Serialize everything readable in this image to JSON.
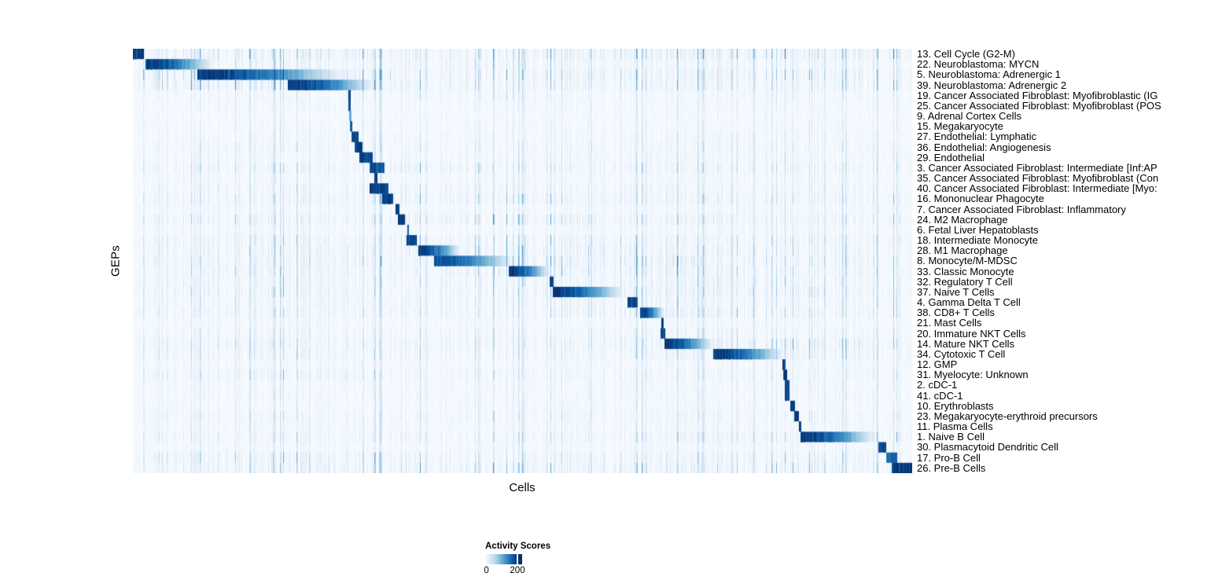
{
  "figure": {
    "background": "#ffffff"
  },
  "legend": {
    "title": "Activity Scores",
    "tick_labels": [
      "0",
      "200"
    ],
    "min": 0,
    "max": 200,
    "tick_value_fraction": 0.87
  },
  "chart_data": {
    "type": "heatmap",
    "title": "",
    "xlabel": "Cells",
    "ylabel": "GEPs",
    "legend_title": "Activity Scores",
    "value_range": [
      0,
      200
    ],
    "colormap": "Blues",
    "colormap_stops": [
      "#f7fbff",
      "#deebf7",
      "#c6dbef",
      "#9ecae1",
      "#6baed6",
      "#4292c6",
      "#2171b5",
      "#08519c",
      "#08306b"
    ],
    "x_axis_ticks": "none (individual cells, unlabeled)",
    "grid": false,
    "rows": [
      {
        "label": "13. Cell Cycle (G2-M)",
        "profile": "solid",
        "block": [
          0.0,
          0.014
        ],
        "peak": 1.0,
        "noise": 0.85,
        "hot": [
          0.0,
          1.0,
          1.0
        ]
      },
      {
        "label": "22. Neuroblastoma: MYCN",
        "profile": "fade",
        "block": [
          0.016,
          0.103
        ],
        "peak": 1.0,
        "noise": 0.45,
        "hot": [
          0.0,
          0.55,
          1.3
        ]
      },
      {
        "label": "5. Neuroblastoma: Adrenergic 1",
        "profile": "fade",
        "block": [
          0.082,
          0.271
        ],
        "peak": 1.0,
        "noise": 0.7,
        "hot": [
          0.0,
          0.33,
          1.6
        ]
      },
      {
        "label": "39. Neuroblastoma: Adrenergic 2",
        "profile": "fade",
        "block": [
          0.198,
          0.31
        ],
        "peak": 1.0,
        "noise": 0.6,
        "hot": [
          0.0,
          0.33,
          1.5
        ]
      },
      {
        "label": "19. Cancer Associated Fibroblast: Myofibroblastic (IG",
        "profile": "solid",
        "block": [
          0.2755,
          0.279
        ],
        "peak": 1.0,
        "noise": 0.3,
        "hot": [
          0.27,
          0.5,
          1.5
        ]
      },
      {
        "label": "25. Cancer Associated Fibroblast: Myofibroblast (POS",
        "profile": "solid",
        "block": [
          0.2755,
          0.2795
        ],
        "peak": 1.0,
        "noise": 0.28,
        "hot": null
      },
      {
        "label": "9. Adrenal Cortex Cells",
        "profile": "solid",
        "block": [
          0.277,
          0.28
        ],
        "peak": 0.55,
        "noise": 0.22,
        "hot": null
      },
      {
        "label": "15. Megakaryocyte",
        "profile": "solid",
        "block": [
          0.278,
          0.2815
        ],
        "peak": 0.9,
        "noise": 0.28,
        "hot": null
      },
      {
        "label": "27. Endothelial: Lymphatic",
        "profile": "solid",
        "block": [
          0.2805,
          0.2886
        ],
        "peak": 1.0,
        "noise": 0.3,
        "hot": [
          0.27,
          0.35,
          1.5
        ]
      },
      {
        "label": "36. Endothelial: Angiogenesis",
        "profile": "solid",
        "block": [
          0.2836,
          0.2937
        ],
        "peak": 1.0,
        "noise": 0.4,
        "hot": null
      },
      {
        "label": "29. Endothelial",
        "profile": "solid",
        "block": [
          0.2906,
          0.3068
        ],
        "peak": 1.0,
        "noise": 0.35,
        "hot": null
      },
      {
        "label": "3. Cancer Associated Fibroblast: Intermediate [Inf:AP",
        "profile": "solid",
        "block": [
          0.3037,
          0.3219
        ],
        "peak": 0.95,
        "noise": 0.5,
        "hot": [
          0.28,
          0.45,
          1.4
        ]
      },
      {
        "label": "35. Cancer Associated Fibroblast: Myofibroblast (Con",
        "profile": "solid",
        "block": [
          0.3088,
          0.3138
        ],
        "peak": 1.0,
        "noise": 0.3,
        "hot": null
      },
      {
        "label": "40. Cancer Associated Fibroblast: Intermediate [Myo:",
        "profile": "solid",
        "block": [
          0.3037,
          0.327
        ],
        "peak": 1.0,
        "noise": 0.4,
        "hot": [
          0.28,
          0.45,
          1.3
        ]
      },
      {
        "label": "16. Mononuclear Phagocyte",
        "profile": "solid",
        "block": [
          0.319,
          0.334
        ],
        "peak": 1.0,
        "noise": 0.5,
        "hot": [
          0.3,
          0.55,
          1.3
        ]
      },
      {
        "label": "7. Cancer Associated Fibroblast: Inflammatory",
        "profile": "solid",
        "block": [
          0.337,
          0.342
        ],
        "peak": 1.0,
        "noise": 0.32,
        "hot": null
      },
      {
        "label": "24. M2 Macrophage",
        "profile": "solid",
        "block": [
          0.34,
          0.349
        ],
        "peak": 1.0,
        "noise": 0.55,
        "hot": [
          0.33,
          0.6,
          1.3
        ]
      },
      {
        "label": "6. Fetal Liver Hepatoblasts",
        "profile": "solid",
        "block": [
          0.352,
          0.354
        ],
        "peak": 0.85,
        "noise": 0.3,
        "hot": null
      },
      {
        "label": "18. Intermediate Monocyte",
        "profile": "solid",
        "block": [
          0.351,
          0.364
        ],
        "peak": 1.0,
        "noise": 0.55,
        "hot": [
          0.33,
          0.65,
          1.3
        ]
      },
      {
        "label": "28. M1 Macrophage",
        "profile": "fade",
        "block": [
          0.366,
          0.42
        ],
        "peak": 1.0,
        "noise": 0.55,
        "hot": [
          0.35,
          0.65,
          1.4
        ]
      },
      {
        "label": "8. Monocyte/M-MDSC",
        "profile": "fade",
        "block": [
          0.3864,
          0.489
        ],
        "peak": 0.92,
        "noise": 0.6,
        "hot": [
          0.38,
          0.72,
          1.5
        ]
      },
      {
        "label": "33. Classic Monocyte",
        "profile": "fade",
        "block": [
          0.482,
          0.535
        ],
        "peak": 1.0,
        "noise": 0.55,
        "hot": [
          0.4,
          0.72,
          1.4
        ]
      },
      {
        "label": "32. Regulatory T Cell",
        "profile": "solid",
        "block": [
          0.534,
          0.539
        ],
        "peak": 1.0,
        "noise": 0.5,
        "hot": [
          0.5,
          0.85,
          1.2
        ]
      },
      {
        "label": "37. Naive T Cells",
        "profile": "fade",
        "block": [
          0.538,
          0.6296
        ],
        "peak": 1.0,
        "noise": 0.55,
        "hot": [
          0.5,
          0.9,
          1.2
        ]
      },
      {
        "label": "4. Gamma Delta T Cell",
        "profile": "solid",
        "block": [
          0.634,
          0.647
        ],
        "peak": 1.0,
        "noise": 0.45,
        "hot": [
          0.55,
          0.75,
          1.3
        ]
      },
      {
        "label": "38. CD8+ T Cells",
        "profile": "fade",
        "block": [
          0.65,
          0.682
        ],
        "peak": 1.0,
        "noise": 0.5,
        "hot": [
          0.55,
          0.8,
          1.3
        ]
      },
      {
        "label": "21. Mast Cells",
        "profile": "solid",
        "block": [
          0.678,
          0.681
        ],
        "peak": 1.0,
        "noise": 0.28,
        "hot": null
      },
      {
        "label": "20. Immature NKT Cells",
        "profile": "solid",
        "block": [
          0.677,
          0.683
        ],
        "peak": 1.0,
        "noise": 0.4,
        "hot": [
          0.6,
          0.8,
          1.2
        ]
      },
      {
        "label": "14. Mature NKT Cells",
        "profile": "fade",
        "block": [
          0.682,
          0.7447
        ],
        "peak": 1.0,
        "noise": 0.55,
        "hot": [
          0.65,
          0.95,
          1.4
        ]
      },
      {
        "label": "34. Cytotoxic T Cell",
        "profile": "fade",
        "block": [
          0.7447,
          0.8355
        ],
        "peak": 1.0,
        "noise": 0.5,
        "hot": [
          0.65,
          0.95,
          1.3
        ]
      },
      {
        "label": "12. GMP",
        "profile": "solid",
        "block": [
          0.833,
          0.837
        ],
        "peak": 1.0,
        "noise": 0.3,
        "hot": null
      },
      {
        "label": "31. Myelocyte: Unknown",
        "profile": "solid",
        "block": [
          0.834,
          0.839
        ],
        "peak": 1.0,
        "noise": 0.42,
        "hot": [
          0.02,
          0.35,
          1.3
        ]
      },
      {
        "label": "2. cDC-1",
        "profile": "solid",
        "block": [
          0.836,
          0.842
        ],
        "peak": 1.0,
        "noise": 0.3,
        "hot": null
      },
      {
        "label": "41. cDC-1",
        "profile": "solid",
        "block": [
          0.836,
          0.842
        ],
        "peak": 1.0,
        "noise": 0.32,
        "hot": null
      },
      {
        "label": "10. Erythroblasts",
        "profile": "solid",
        "block": [
          0.843,
          0.849
        ],
        "peak": 1.0,
        "noise": 0.3,
        "hot": null
      },
      {
        "label": "23. Megakaryocyte-erythroid precursors",
        "profile": "solid",
        "block": [
          0.848,
          0.854
        ],
        "peak": 1.0,
        "noise": 0.42,
        "hot": null
      },
      {
        "label": "11. Plasma Cells",
        "profile": "solid",
        "block": [
          0.854,
          0.857
        ],
        "peak": 1.0,
        "noise": 0.32,
        "hot": null
      },
      {
        "label": "1. Naive B Cell",
        "profile": "fade",
        "block": [
          0.8567,
          0.9526
        ],
        "peak": 1.0,
        "noise": 0.5,
        "hot": [
          0.85,
          1.0,
          1.3
        ]
      },
      {
        "label": "30. Plasmacytoid Dendritic Cell",
        "profile": "solid",
        "block": [
          0.9566,
          0.9667
        ],
        "peak": 1.0,
        "noise": 0.32,
        "hot": null
      },
      {
        "label": "17. Pro-B Cell",
        "profile": "solid",
        "block": [
          0.9667,
          0.98
        ],
        "peak": 0.85,
        "noise": 0.55,
        "hot": [
          0.0,
          0.4,
          1.2
        ]
      },
      {
        "label": "26. Pre-B Cells",
        "profile": "solid",
        "block": [
          0.973,
          1.0
        ],
        "peak": 1.0,
        "noise": 0.6,
        "hot": [
          0.2,
          0.9,
          1.2
        ]
      }
    ]
  }
}
